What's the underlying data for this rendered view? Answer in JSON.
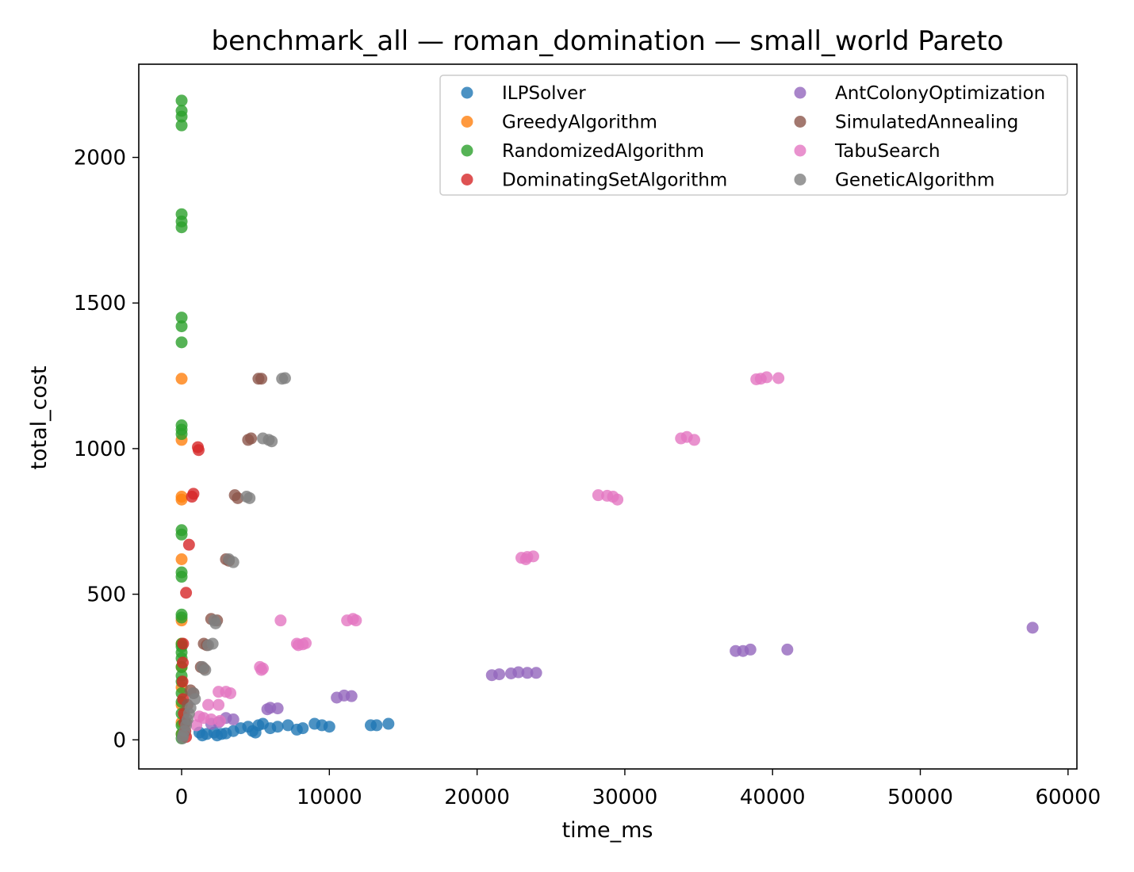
{
  "chart_data": {
    "type": "scatter",
    "title": "benchmark_all — roman_domination — small_world Pareto",
    "xlabel": "time_ms",
    "ylabel": "total_cost",
    "xlim": [
      -2900,
      60600
    ],
    "ylim": [
      -100,
      2320
    ],
    "xticks": [
      0,
      10000,
      20000,
      30000,
      40000,
      50000,
      60000
    ],
    "yticks": [
      0,
      500,
      1000,
      1500,
      2000
    ],
    "grid": false,
    "legend_position": "top-right",
    "series": [
      {
        "name": "ILPSolver",
        "color": "#1f77b4",
        "points": [
          [
            1200,
            25
          ],
          [
            1400,
            15
          ],
          [
            1700,
            20
          ],
          [
            2200,
            25
          ],
          [
            2400,
            15
          ],
          [
            2700,
            20
          ],
          [
            3000,
            22
          ],
          [
            3500,
            30
          ],
          [
            4000,
            40
          ],
          [
            4500,
            45
          ],
          [
            4800,
            30
          ],
          [
            5000,
            25
          ],
          [
            5200,
            50
          ],
          [
            5500,
            55
          ],
          [
            6000,
            40
          ],
          [
            6500,
            45
          ],
          [
            7200,
            50
          ],
          [
            7800,
            35
          ],
          [
            8200,
            40
          ],
          [
            9000,
            55
          ],
          [
            9500,
            50
          ],
          [
            10000,
            45
          ],
          [
            12800,
            50
          ],
          [
            13200,
            50
          ],
          [
            14000,
            55
          ]
        ]
      },
      {
        "name": "GreedyAlgorithm",
        "color": "#ff7f0e",
        "points": [
          [
            0,
            1240
          ],
          [
            0,
            1030
          ],
          [
            0,
            835
          ],
          [
            0,
            825
          ],
          [
            0,
            620
          ],
          [
            0,
            410
          ],
          [
            0,
            330
          ],
          [
            0,
            250
          ],
          [
            0,
            180
          ],
          [
            0,
            120
          ],
          [
            0,
            60
          ],
          [
            0,
            20
          ]
        ]
      },
      {
        "name": "RandomizedAlgorithm",
        "color": "#2ca02c",
        "points": [
          [
            0,
            2195
          ],
          [
            0,
            2160
          ],
          [
            0,
            2140
          ],
          [
            0,
            2110
          ],
          [
            0,
            1805
          ],
          [
            0,
            1780
          ],
          [
            0,
            1760
          ],
          [
            0,
            1450
          ],
          [
            0,
            1420
          ],
          [
            0,
            1365
          ],
          [
            0,
            1080
          ],
          [
            0,
            1065
          ],
          [
            0,
            1050
          ],
          [
            0,
            720
          ],
          [
            0,
            705
          ],
          [
            0,
            575
          ],
          [
            0,
            560
          ],
          [
            0,
            430
          ],
          [
            0,
            420
          ],
          [
            0,
            330
          ],
          [
            0,
            320
          ],
          [
            0,
            300
          ],
          [
            0,
            280
          ],
          [
            0,
            250
          ],
          [
            0,
            220
          ],
          [
            0,
            200
          ],
          [
            0,
            160
          ],
          [
            0,
            130
          ],
          [
            0,
            90
          ],
          [
            0,
            50
          ],
          [
            0,
            20
          ],
          [
            0,
            5
          ]
        ]
      },
      {
        "name": "DominatingSetAlgorithm",
        "color": "#d62728",
        "points": [
          [
            1100,
            1005
          ],
          [
            1150,
            995
          ],
          [
            800,
            845
          ],
          [
            700,
            835
          ],
          [
            500,
            670
          ],
          [
            300,
            505
          ],
          [
            100,
            330
          ],
          [
            80,
            265
          ],
          [
            60,
            200
          ],
          [
            100,
            140
          ],
          [
            150,
            90
          ],
          [
            200,
            60
          ],
          [
            250,
            30
          ],
          [
            300,
            10
          ]
        ]
      },
      {
        "name": "AntColonyOptimization",
        "color": "#9467bd",
        "points": [
          [
            57600,
            385
          ],
          [
            41000,
            310
          ],
          [
            38500,
            310
          ],
          [
            38000,
            305
          ],
          [
            37500,
            305
          ],
          [
            24000,
            230
          ],
          [
            23400,
            230
          ],
          [
            22800,
            232
          ],
          [
            22300,
            228
          ],
          [
            21500,
            225
          ],
          [
            21000,
            222
          ],
          [
            11500,
            150
          ],
          [
            11000,
            152
          ],
          [
            10500,
            145
          ],
          [
            6000,
            110
          ],
          [
            6500,
            108
          ],
          [
            5800,
            105
          ],
          [
            3000,
            75
          ],
          [
            3500,
            70
          ],
          [
            2500,
            60
          ],
          [
            2000,
            55
          ]
        ]
      },
      {
        "name": "SimulatedAnnealing",
        "color": "#8c564b",
        "points": [
          [
            5200,
            1240
          ],
          [
            5400,
            1240
          ],
          [
            4500,
            1030
          ],
          [
            4700,
            1035
          ],
          [
            3600,
            840
          ],
          [
            3800,
            830
          ],
          [
            3000,
            620
          ],
          [
            3200,
            615
          ],
          [
            2000,
            415
          ],
          [
            2400,
            410
          ],
          [
            1500,
            330
          ],
          [
            1700,
            325
          ],
          [
            1300,
            250
          ],
          [
            1500,
            245
          ],
          [
            600,
            170
          ],
          [
            800,
            160
          ],
          [
            400,
            120
          ],
          [
            300,
            60
          ]
        ]
      },
      {
        "name": "TabuSearch",
        "color": "#e377c2",
        "points": [
          [
            39200,
            1240
          ],
          [
            39600,
            1245
          ],
          [
            40400,
            1242
          ],
          [
            38900,
            1238
          ],
          [
            33800,
            1035
          ],
          [
            34200,
            1040
          ],
          [
            34700,
            1030
          ],
          [
            28200,
            840
          ],
          [
            28800,
            838
          ],
          [
            29200,
            835
          ],
          [
            29500,
            825
          ],
          [
            23000,
            625
          ],
          [
            23400,
            628
          ],
          [
            23800,
            630
          ],
          [
            23300,
            620
          ],
          [
            6700,
            410
          ],
          [
            11200,
            410
          ],
          [
            11600,
            415
          ],
          [
            11800,
            410
          ],
          [
            7800,
            330
          ],
          [
            8200,
            328
          ],
          [
            7900,
            325
          ],
          [
            8400,
            332
          ],
          [
            5300,
            250
          ],
          [
            5500,
            245
          ],
          [
            5400,
            240
          ],
          [
            2500,
            165
          ],
          [
            3000,
            165
          ],
          [
            3300,
            160
          ],
          [
            1800,
            120
          ],
          [
            2500,
            120
          ],
          [
            1200,
            80
          ],
          [
            1500,
            75
          ],
          [
            2000,
            70
          ],
          [
            2600,
            65
          ],
          [
            1000,
            50
          ]
        ]
      },
      {
        "name": "GeneticAlgorithm",
        "color": "#7f7f7f",
        "points": [
          [
            6800,
            1240
          ],
          [
            7000,
            1242
          ],
          [
            5500,
            1035
          ],
          [
            5900,
            1030
          ],
          [
            6100,
            1025
          ],
          [
            4400,
            835
          ],
          [
            4600,
            830
          ],
          [
            3200,
            620
          ],
          [
            3500,
            610
          ],
          [
            2200,
            410
          ],
          [
            2300,
            400
          ],
          [
            1800,
            325
          ],
          [
            2100,
            330
          ],
          [
            1400,
            250
          ],
          [
            1600,
            240
          ],
          [
            800,
            160
          ],
          [
            900,
            140
          ],
          [
            600,
            110
          ],
          [
            500,
            90
          ],
          [
            400,
            70
          ],
          [
            300,
            50
          ],
          [
            200,
            30
          ],
          [
            100,
            15
          ],
          [
            50,
            5
          ]
        ]
      }
    ]
  }
}
